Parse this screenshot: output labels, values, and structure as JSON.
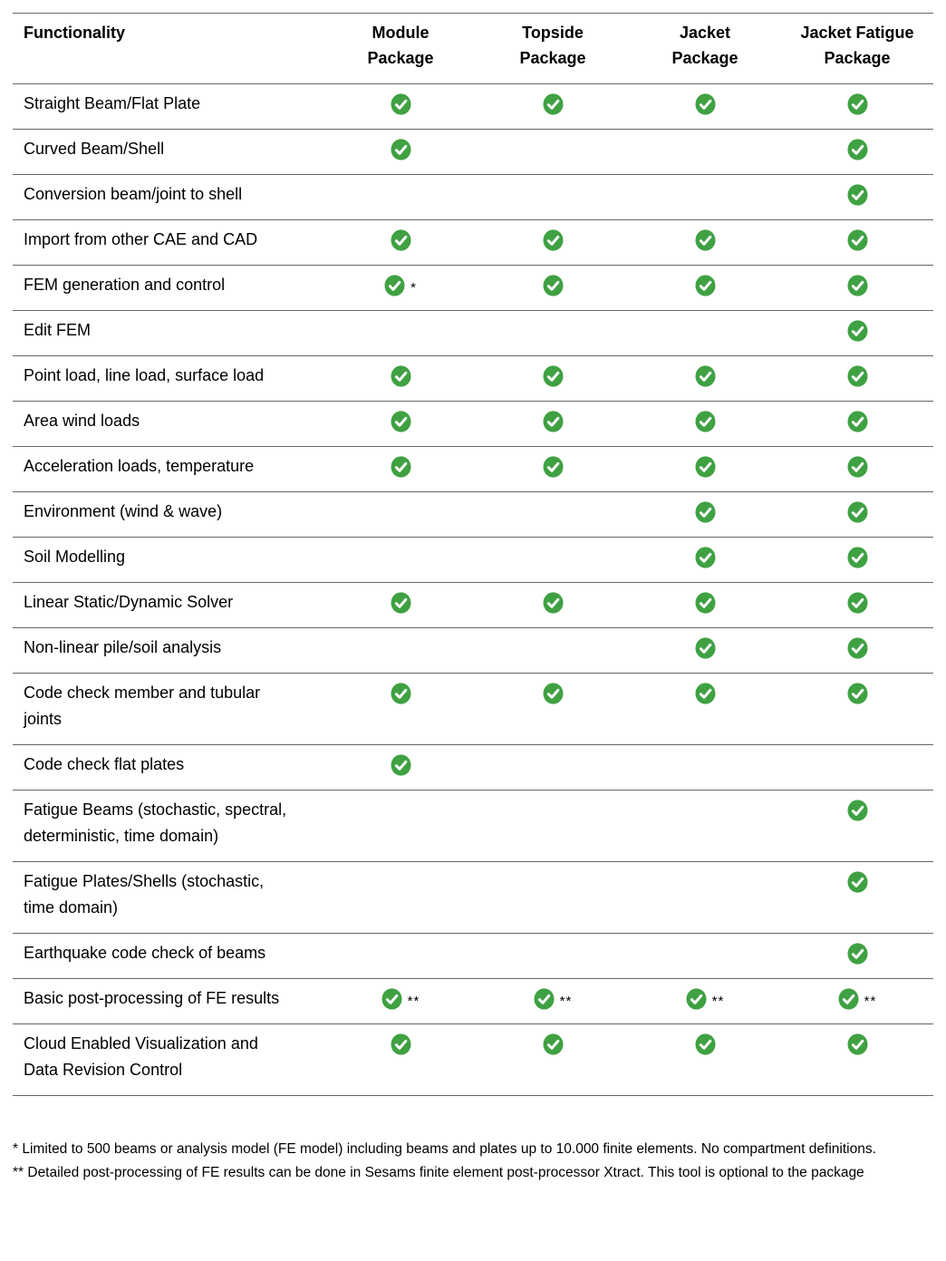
{
  "colors": {
    "check_green": "#3FA142",
    "line_gray": "#666666",
    "text": "#000000",
    "background": "#FFFFFF"
  },
  "table": {
    "functionality_header": "Functionality",
    "columns": [
      {
        "label": "Module\nPackage"
      },
      {
        "label": "Topside\nPackage"
      },
      {
        "label": "Jacket\nPackage"
      },
      {
        "label": "Jacket Fatigue\nPackage"
      }
    ],
    "rows": [
      {
        "label": "Straight Beam/Flat Plate",
        "cells": [
          {
            "checked": true,
            "note": ""
          },
          {
            "checked": true,
            "note": ""
          },
          {
            "checked": true,
            "note": ""
          },
          {
            "checked": true,
            "note": ""
          }
        ]
      },
      {
        "label": "Curved Beam/Shell",
        "cells": [
          {
            "checked": true,
            "note": ""
          },
          {
            "checked": false,
            "note": ""
          },
          {
            "checked": false,
            "note": ""
          },
          {
            "checked": true,
            "note": ""
          }
        ]
      },
      {
        "label": "Conversion beam/joint to shell",
        "cells": [
          {
            "checked": false,
            "note": ""
          },
          {
            "checked": false,
            "note": ""
          },
          {
            "checked": false,
            "note": ""
          },
          {
            "checked": true,
            "note": ""
          }
        ]
      },
      {
        "label": "Import from other CAE and CAD",
        "cells": [
          {
            "checked": true,
            "note": ""
          },
          {
            "checked": true,
            "note": ""
          },
          {
            "checked": true,
            "note": ""
          },
          {
            "checked": true,
            "note": ""
          }
        ]
      },
      {
        "label": "FEM generation and control",
        "cells": [
          {
            "checked": true,
            "note": "*"
          },
          {
            "checked": true,
            "note": ""
          },
          {
            "checked": true,
            "note": ""
          },
          {
            "checked": true,
            "note": ""
          }
        ]
      },
      {
        "label": "Edit FEM",
        "cells": [
          {
            "checked": false,
            "note": ""
          },
          {
            "checked": false,
            "note": ""
          },
          {
            "checked": false,
            "note": ""
          },
          {
            "checked": true,
            "note": ""
          }
        ]
      },
      {
        "label": "Point load, line load, surface load",
        "cells": [
          {
            "checked": true,
            "note": ""
          },
          {
            "checked": true,
            "note": ""
          },
          {
            "checked": true,
            "note": ""
          },
          {
            "checked": true,
            "note": ""
          }
        ]
      },
      {
        "label": "Area wind loads",
        "cells": [
          {
            "checked": true,
            "note": ""
          },
          {
            "checked": true,
            "note": ""
          },
          {
            "checked": true,
            "note": ""
          },
          {
            "checked": true,
            "note": ""
          }
        ]
      },
      {
        "label": "Acceleration loads, temperature",
        "cells": [
          {
            "checked": true,
            "note": ""
          },
          {
            "checked": true,
            "note": ""
          },
          {
            "checked": true,
            "note": ""
          },
          {
            "checked": true,
            "note": ""
          }
        ]
      },
      {
        "label": "Environment (wind & wave)",
        "cells": [
          {
            "checked": false,
            "note": ""
          },
          {
            "checked": false,
            "note": ""
          },
          {
            "checked": true,
            "note": ""
          },
          {
            "checked": true,
            "note": ""
          }
        ]
      },
      {
        "label": "Soil Modelling",
        "cells": [
          {
            "checked": false,
            "note": ""
          },
          {
            "checked": false,
            "note": ""
          },
          {
            "checked": true,
            "note": ""
          },
          {
            "checked": true,
            "note": ""
          }
        ]
      },
      {
        "label": "Linear Static/Dynamic Solver",
        "cells": [
          {
            "checked": true,
            "note": ""
          },
          {
            "checked": true,
            "note": ""
          },
          {
            "checked": true,
            "note": ""
          },
          {
            "checked": true,
            "note": ""
          }
        ]
      },
      {
        "label": "Non-linear pile/soil analysis",
        "cells": [
          {
            "checked": false,
            "note": ""
          },
          {
            "checked": false,
            "note": ""
          },
          {
            "checked": true,
            "note": ""
          },
          {
            "checked": true,
            "note": ""
          }
        ]
      },
      {
        "label": "Code check member and tubular joints",
        "cells": [
          {
            "checked": true,
            "note": ""
          },
          {
            "checked": true,
            "note": ""
          },
          {
            "checked": true,
            "note": ""
          },
          {
            "checked": true,
            "note": ""
          }
        ]
      },
      {
        "label": "Code check flat plates",
        "cells": [
          {
            "checked": true,
            "note": ""
          },
          {
            "checked": false,
            "note": ""
          },
          {
            "checked": false,
            "note": ""
          },
          {
            "checked": false,
            "note": ""
          }
        ]
      },
      {
        "label": "Fatigue Beams (stochastic, spectral, deterministic, time domain)",
        "cells": [
          {
            "checked": false,
            "note": ""
          },
          {
            "checked": false,
            "note": ""
          },
          {
            "checked": false,
            "note": ""
          },
          {
            "checked": true,
            "note": ""
          }
        ]
      },
      {
        "label": "Fatigue Plates/Shells (stochastic, time domain)",
        "cells": [
          {
            "checked": false,
            "note": ""
          },
          {
            "checked": false,
            "note": ""
          },
          {
            "checked": false,
            "note": ""
          },
          {
            "checked": true,
            "note": ""
          }
        ]
      },
      {
        "label": "Earthquake code check of beams",
        "cells": [
          {
            "checked": false,
            "note": ""
          },
          {
            "checked": false,
            "note": ""
          },
          {
            "checked": false,
            "note": ""
          },
          {
            "checked": true,
            "note": ""
          }
        ]
      },
      {
        "label": "Basic post-processing of FE results",
        "cells": [
          {
            "checked": true,
            "note": "**"
          },
          {
            "checked": true,
            "note": "**"
          },
          {
            "checked": true,
            "note": "**"
          },
          {
            "checked": true,
            "note": "**"
          }
        ]
      },
      {
        "label": "Cloud Enabled Visualization and Data Revision Control",
        "cells": [
          {
            "checked": true,
            "note": ""
          },
          {
            "checked": true,
            "note": ""
          },
          {
            "checked": true,
            "note": ""
          },
          {
            "checked": true,
            "note": ""
          }
        ]
      }
    ]
  },
  "footnotes": [
    "* Limited to 500 beams or analysis model (FE model) including beams and plates up to 10.000 finite elements. No compartment definitions.",
    "** Detailed post-processing of FE results can be done in Sesams finite element post-processor Xtract. This tool is optional to the package"
  ]
}
